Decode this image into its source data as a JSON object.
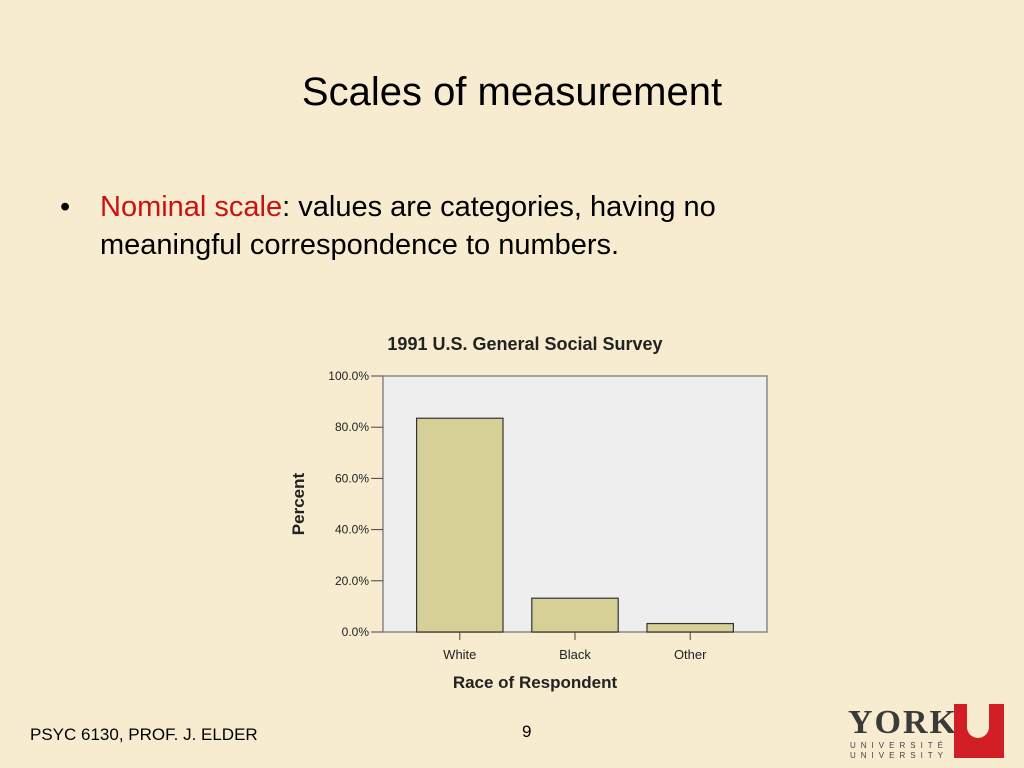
{
  "slide": {
    "title": "Scales of measurement",
    "bullet": {
      "marker": "•",
      "term": "Nominal scale",
      "text": ":  values are categories, having no meaningful correspondence to numbers."
    },
    "footer": {
      "course": "PSYC 6130, PROF. J. ELDER",
      "page_number": "9"
    },
    "logo": {
      "word": "YORK",
      "line1": "UNIVERSITÉ",
      "line2": "UNIVERSITY",
      "mark": "U",
      "brand_color": "#d21f26"
    }
  },
  "chart_data": {
    "type": "bar",
    "title": "1991 U.S. General Social Survey",
    "xlabel": "Race of Respondent",
    "ylabel": "Percent",
    "categories": [
      "White",
      "Black",
      "Other"
    ],
    "values": [
      83.5,
      13.2,
      3.3
    ],
    "ylim": [
      0,
      100
    ],
    "yticks": [
      "0.0%",
      "20.0%",
      "40.0%",
      "60.0%",
      "80.0%",
      "100.0%"
    ],
    "grid": false,
    "bar_color": "#d6cf96",
    "plot_bg": "#eeeeee"
  }
}
